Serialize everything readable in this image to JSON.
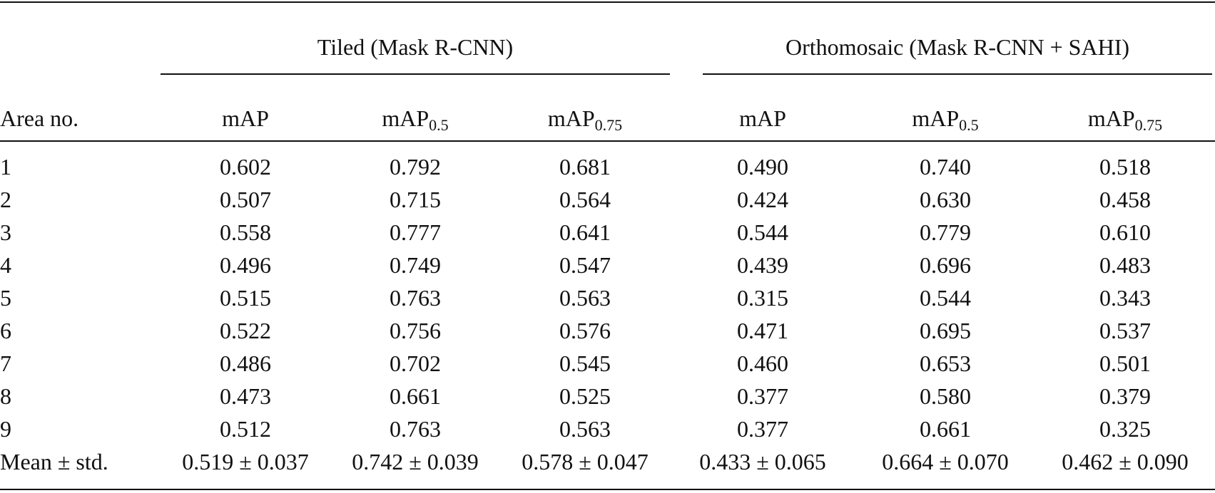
{
  "table": {
    "group_headers": {
      "tiled": "Tiled (Mask R-CNN)",
      "orthomosaic": "Orthomosaic (Mask R-CNN + SAHI)"
    },
    "columns": {
      "area": "Area no.",
      "tiled_map": {
        "base": "mAP",
        "sub": ""
      },
      "tiled_map50": {
        "base": "mAP",
        "sub": "0.5"
      },
      "tiled_map75": {
        "base": "mAP",
        "sub": "0.75"
      },
      "ortho_map": {
        "base": "mAP",
        "sub": ""
      },
      "ortho_map50": {
        "base": "mAP",
        "sub": "0.5"
      },
      "ortho_map75": {
        "base": "mAP",
        "sub": "0.75"
      }
    },
    "rows": [
      {
        "area": "1",
        "t_map": "0.602",
        "t_map50": "0.792",
        "t_map75": "0.681",
        "o_map": "0.490",
        "o_map50": "0.740",
        "o_map75": "0.518"
      },
      {
        "area": "2",
        "t_map": "0.507",
        "t_map50": "0.715",
        "t_map75": "0.564",
        "o_map": "0.424",
        "o_map50": "0.630",
        "o_map75": "0.458"
      },
      {
        "area": "3",
        "t_map": "0.558",
        "t_map50": "0.777",
        "t_map75": "0.641",
        "o_map": "0.544",
        "o_map50": "0.779",
        "o_map75": "0.610"
      },
      {
        "area": "4",
        "t_map": "0.496",
        "t_map50": "0.749",
        "t_map75": "0.547",
        "o_map": "0.439",
        "o_map50": "0.696",
        "o_map75": "0.483"
      },
      {
        "area": "5",
        "t_map": "0.515",
        "t_map50": "0.763",
        "t_map75": "0.563",
        "o_map": "0.315",
        "o_map50": "0.544",
        "o_map75": "0.343"
      },
      {
        "area": "6",
        "t_map": "0.522",
        "t_map50": "0.756",
        "t_map75": "0.576",
        "o_map": "0.471",
        "o_map50": "0.695",
        "o_map75": "0.537"
      },
      {
        "area": "7",
        "t_map": "0.486",
        "t_map50": "0.702",
        "t_map75": "0.545",
        "o_map": "0.460",
        "o_map50": "0.653",
        "o_map75": "0.501"
      },
      {
        "area": "8",
        "t_map": "0.473",
        "t_map50": "0.661",
        "t_map75": "0.525",
        "o_map": "0.377",
        "o_map50": "0.580",
        "o_map75": "0.379"
      },
      {
        "area": "9",
        "t_map": "0.512",
        "t_map50": "0.763",
        "t_map75": "0.563",
        "o_map": "0.377",
        "o_map50": "0.661",
        "o_map75": "0.325"
      }
    ],
    "mean_row": {
      "area": "Mean ± std.",
      "t_map": "0.519 ± 0.037",
      "t_map50": "0.742 ± 0.039",
      "t_map75": "0.578 ± 0.047",
      "o_map": "0.433 ± 0.065",
      "o_map50": "0.664 ± 0.070",
      "o_map75": "0.462 ± 0.090"
    }
  }
}
